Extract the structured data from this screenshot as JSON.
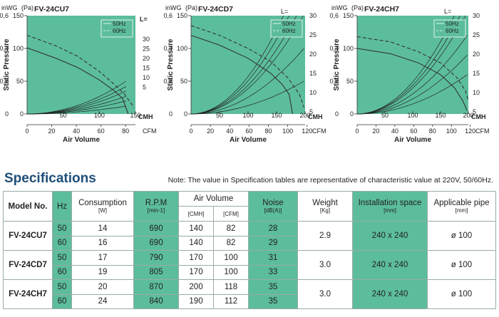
{
  "charts": [
    {
      "chart_data": {
        "type": "line",
        "title": "FV-24CU7",
        "y_units": [
          "inWG",
          "(Pa)"
        ],
        "y_axis_label": "Static Pressure",
        "x_units": [
          "CMH",
          "CFM"
        ],
        "x_axis_label": "Air Volume",
        "pa_ticks": [
          0,
          50,
          100,
          150
        ],
        "inwg_ticks": [
          "0",
          "0,2",
          "0,4",
          "0,6"
        ],
        "cmh_ticks": [
          50,
          100,
          150
        ],
        "cfm_ticks": [
          0,
          20,
          40,
          60,
          80
        ],
        "cmh_max": 150,
        "cfm_max": 88,
        "legend": [
          "50Hz",
          "60Hz"
        ],
        "L_label": "L=",
        "L_values": [
          30,
          25,
          20,
          15,
          10,
          5
        ],
        "series": [
          {
            "name": "50Hz",
            "points": [
              [
                0,
                101
              ],
              [
                40,
                85
              ],
              [
                70,
                71
              ],
              [
                100,
                52
              ],
              [
                120,
                36
              ],
              [
                132,
                24
              ],
              [
                140,
                0
              ]
            ]
          },
          {
            "name": "60Hz",
            "points": [
              [
                0,
                120
              ],
              [
                40,
                104
              ],
              [
                70,
                88
              ],
              [
                100,
                65
              ],
              [
                120,
                46
              ],
              [
                135,
                30
              ],
              [
                148,
                10
              ]
            ]
          }
        ],
        "resistance_curves": [
          {
            "L": 30,
            "end": [
              137,
              50
            ]
          },
          {
            "L": 25,
            "end": [
              137,
              42
            ]
          },
          {
            "L": 20,
            "end": [
              137,
              35
            ]
          },
          {
            "L": 15,
            "end": [
              137,
              27
            ]
          },
          {
            "L": 10,
            "end": [
              137,
              20
            ]
          },
          {
            "L": 5,
            "end": [
              137,
              12
            ]
          }
        ],
        "ylim": [
          0,
          150
        ],
        "xlim": [
          0,
          150
        ]
      }
    },
    {
      "chart_data": {
        "type": "line",
        "title": "FV-24CD7",
        "y_units": [
          "inWG",
          "(Pa)"
        ],
        "y_axis_label": "Static Pressure",
        "x_units": [
          "CMH",
          "CFM"
        ],
        "x_axis_label": "Air Volume",
        "pa_ticks": [
          0,
          50,
          100,
          150
        ],
        "inwg_ticks": [
          "0",
          "0,2",
          "0,4",
          "0,6"
        ],
        "cmh_ticks": [
          50,
          100,
          150,
          200
        ],
        "cfm_ticks": [
          0,
          20,
          40,
          60,
          80,
          100,
          120
        ],
        "cmh_max": 200,
        "cfm_max": 118,
        "legend": [
          "50Hz",
          "60Hz"
        ],
        "L_label": "L=",
        "L_values": [
          30,
          25,
          20,
          15,
          10,
          5
        ],
        "series": [
          {
            "name": "50Hz",
            "points": [
              [
                0,
                120
              ],
              [
                50,
                105
              ],
              [
                100,
                85
              ],
              [
                140,
                62
              ],
              [
                160,
                45
              ],
              [
                172,
                30
              ],
              [
                178,
                0
              ]
            ]
          },
          {
            "name": "60Hz",
            "points": [
              [
                0,
                135
              ],
              [
                50,
                120
              ],
              [
                100,
                100
              ],
              [
                140,
                80
              ],
              [
                170,
                55
              ],
              [
                190,
                30
              ],
              [
                198,
                10
              ]
            ]
          }
        ],
        "resistance_curves": [
          {
            "L": 30,
            "end": [
              162,
              150
            ]
          },
          {
            "L": 25,
            "end": [
              172,
              150
            ]
          },
          {
            "L": 20,
            "end": [
              185,
              150
            ]
          },
          {
            "L": 15,
            "end": [
              197,
              150
            ]
          },
          {
            "L": 10,
            "end": [
              198,
              100
            ]
          },
          {
            "L": 5,
            "end": [
              198,
              50
            ]
          }
        ],
        "ylim": [
          0,
          150
        ],
        "xlim": [
          0,
          200
        ]
      }
    },
    {
      "chart_data": {
        "type": "line",
        "title": "FV-24CH7",
        "y_units": [
          "inWG",
          "(Pa)"
        ],
        "y_axis_label": "Static Pressure",
        "x_units": [
          "CMH",
          "CFM"
        ],
        "x_axis_label": "Air Volume",
        "pa_ticks": [
          0,
          50,
          100,
          150
        ],
        "inwg_ticks": [
          "0",
          "0,2",
          "0,4",
          "0,6"
        ],
        "cmh_ticks": [
          50,
          100,
          150,
          200
        ],
        "cfm_ticks": [
          0,
          20,
          40,
          60,
          80,
          100,
          120
        ],
        "cmh_max": 200,
        "cfm_max": 118,
        "legend": [
          "50Hz",
          "60Hz"
        ],
        "L_label": "L=",
        "L_values": [
          30,
          25,
          20,
          15,
          10,
          5
        ],
        "series": [
          {
            "name": "50Hz",
            "points": [
              [
                0,
                100
              ],
              [
                60,
                92
              ],
              [
                110,
                78
              ],
              [
                150,
                60
              ],
              [
                175,
                40
              ],
              [
                190,
                20
              ],
              [
                198,
                5
              ]
            ]
          },
          {
            "name": "60Hz",
            "points": [
              [
                0,
                118
              ],
              [
                60,
                110
              ],
              [
                110,
                95
              ],
              [
                150,
                78
              ],
              [
                180,
                55
              ],
              [
                195,
                35
              ],
              [
                200,
                20
              ]
            ]
          }
        ],
        "resistance_curves": [
          {
            "L": 30,
            "end": [
              175,
              150
            ]
          },
          {
            "L": 25,
            "end": [
              185,
              150
            ]
          },
          {
            "L": 20,
            "end": [
              195,
              150
            ]
          },
          {
            "L": 15,
            "end": [
              198,
              120
            ]
          },
          {
            "L": 10,
            "end": [
              198,
              90
            ]
          },
          {
            "L": 5,
            "end": [
              198,
              60
            ]
          }
        ],
        "ylim": [
          0,
          150
        ],
        "xlim": [
          0,
          200
        ]
      }
    }
  ],
  "specs": {
    "title": "Specifications",
    "note": "Note: The value in Specification tables are representative of characteristic value at 220V, 50/60Hz.",
    "headers": {
      "model": "Model No.",
      "hz": "Hz",
      "consumption": "Consumption",
      "consumption_unit": "[W]",
      "rpm": "R.P.M",
      "rpm_unit": "[min-1]",
      "air_volume": "Air Volume",
      "cmh": "[CMH]",
      "cfm": "[CFM]",
      "noise": "Noise",
      "noise_unit": "[dB(A)]",
      "weight": "Weight",
      "weight_unit": "[Kg]",
      "install": "Installation space",
      "install_unit": "[mm]",
      "pipe": "Applicable pipe",
      "pipe_unit": "[mm]"
    },
    "models": [
      {
        "model": "FV-24CU7",
        "weight": "2.9",
        "install": "240 x 240",
        "pipe": "ø 100",
        "rows": [
          {
            "hz": "50",
            "w": "14",
            "rpm": "690",
            "cmh": "140",
            "cfm": "82",
            "noise": "28"
          },
          {
            "hz": "60",
            "w": "16",
            "rpm": "690",
            "cmh": "140",
            "cfm": "82",
            "noise": "29"
          }
        ]
      },
      {
        "model": "FV-24CD7",
        "weight": "3.0",
        "install": "240 x 240",
        "pipe": "ø 100",
        "rows": [
          {
            "hz": "50",
            "w": "17",
            "rpm": "790",
            "cmh": "170",
            "cfm": "100",
            "noise": "31"
          },
          {
            "hz": "60",
            "w": "19",
            "rpm": "805",
            "cmh": "170",
            "cfm": "100",
            "noise": "33"
          }
        ]
      },
      {
        "model": "FV-24CH7",
        "weight": "3.0",
        "install": "240 x 240",
        "pipe": "ø 100",
        "rows": [
          {
            "hz": "50",
            "w": "20",
            "rpm": "870",
            "cmh": "200",
            "cfm": "118",
            "noise": "35"
          },
          {
            "hz": "60",
            "w": "24",
            "rpm": "840",
            "cmh": "190",
            "cfm": "112",
            "noise": "35"
          }
        ]
      }
    ],
    "colors": {
      "green": "#5cbd9c",
      "title_blue": "#1f4e79"
    }
  }
}
